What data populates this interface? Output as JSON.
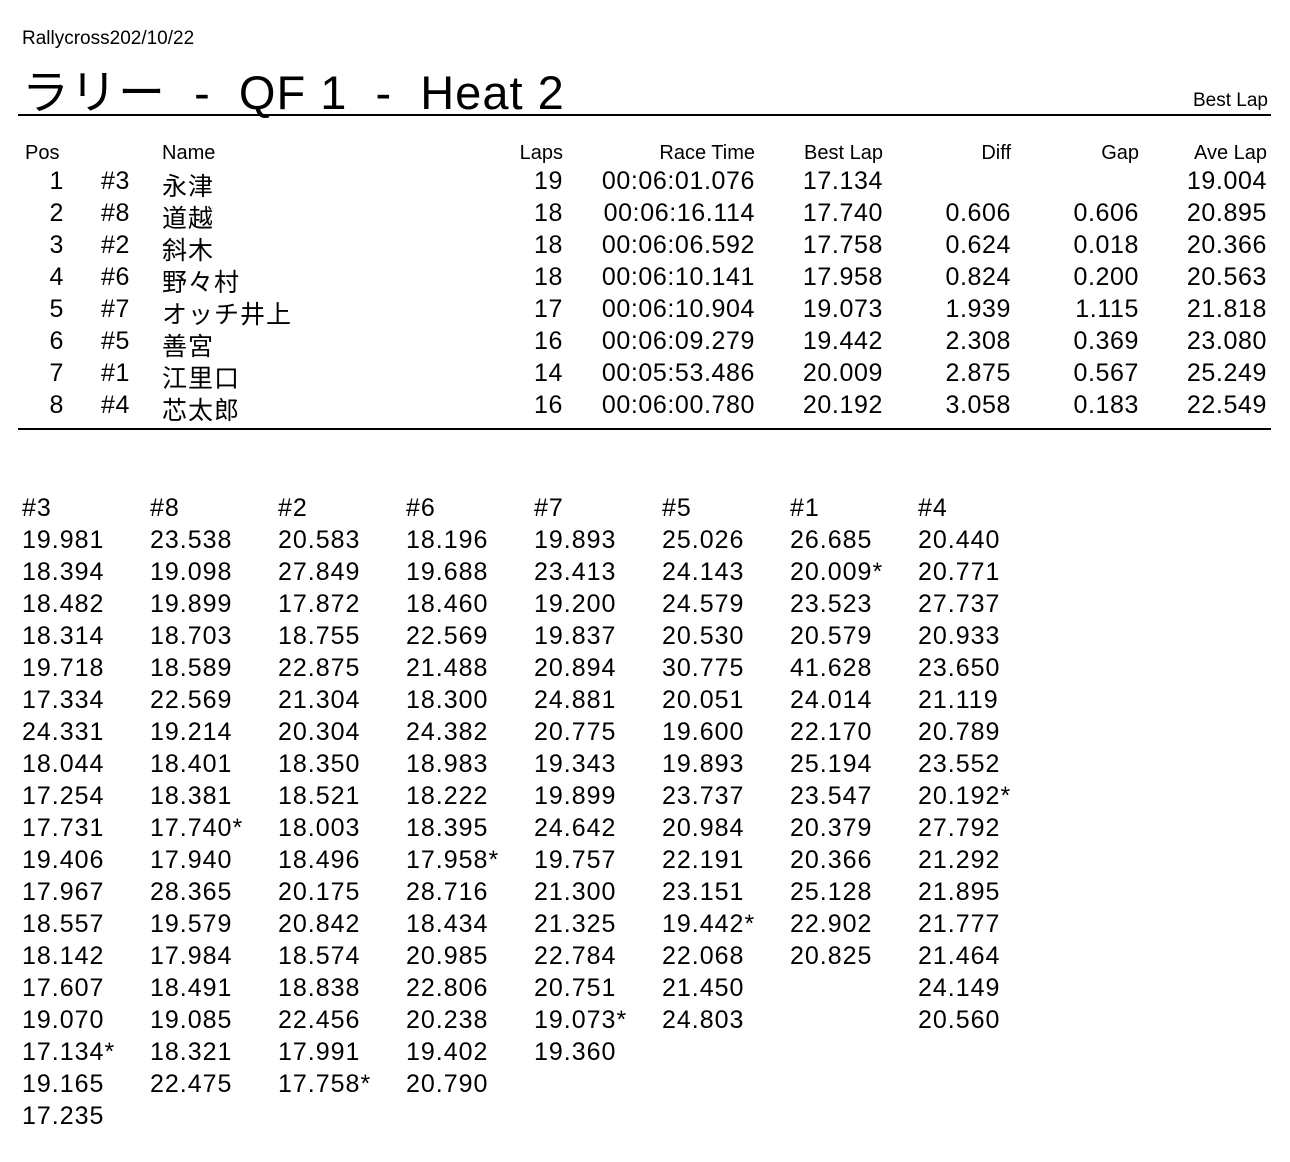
{
  "header": {
    "subtitle": "Rallycross202/10/22",
    "title": "ラリー  -  QF 1  -  Heat 2",
    "report_type": "Best Lap"
  },
  "results": {
    "columns": [
      "Pos",
      "Name",
      "Laps",
      "Race Time",
      "Best Lap",
      "Diff",
      "Gap",
      "Ave Lap"
    ],
    "rows": [
      {
        "pos": "1",
        "no": "#3",
        "name": "永津",
        "laps": "19",
        "race_time": "00:06:01.076",
        "best_lap": "17.134",
        "diff": "",
        "gap": "",
        "ave_lap": "19.004"
      },
      {
        "pos": "2",
        "no": "#8",
        "name": "道越",
        "laps": "18",
        "race_time": "00:06:16.114",
        "best_lap": "17.740",
        "diff": "0.606",
        "gap": "0.606",
        "ave_lap": "20.895"
      },
      {
        "pos": "3",
        "no": "#2",
        "name": "斜木",
        "laps": "18",
        "race_time": "00:06:06.592",
        "best_lap": "17.758",
        "diff": "0.624",
        "gap": "0.018",
        "ave_lap": "20.366"
      },
      {
        "pos": "4",
        "no": "#6",
        "name": "野々村",
        "laps": "18",
        "race_time": "00:06:10.141",
        "best_lap": "17.958",
        "diff": "0.824",
        "gap": "0.200",
        "ave_lap": "20.563"
      },
      {
        "pos": "5",
        "no": "#7",
        "name": "オッチ井上",
        "laps": "17",
        "race_time": "00:06:10.904",
        "best_lap": "19.073",
        "diff": "1.939",
        "gap": "1.115",
        "ave_lap": "21.818"
      },
      {
        "pos": "6",
        "no": "#5",
        "name": "善宮",
        "laps": "16",
        "race_time": "00:06:09.279",
        "best_lap": "19.442",
        "diff": "2.308",
        "gap": "0.369",
        "ave_lap": "23.080"
      },
      {
        "pos": "7",
        "no": "#1",
        "name": "江里口",
        "laps": "14",
        "race_time": "00:05:53.486",
        "best_lap": "20.009",
        "diff": "2.875",
        "gap": "0.567",
        "ave_lap": "25.249"
      },
      {
        "pos": "8",
        "no": "#4",
        "name": "芯太郎",
        "laps": "16",
        "race_time": "00:06:00.780",
        "best_lap": "20.192",
        "diff": "3.058",
        "gap": "0.183",
        "ave_lap": "22.549"
      }
    ]
  },
  "laps": [
    {
      "car": "#3",
      "times": [
        "19.981",
        "18.394",
        "18.482",
        "18.314",
        "19.718",
        "17.334",
        "24.331",
        "18.044",
        "17.254",
        "17.731",
        "19.406",
        "17.967",
        "18.557",
        "18.142",
        "17.607",
        "19.070",
        "17.134*",
        "19.165",
        "17.235"
      ]
    },
    {
      "car": "#8",
      "times": [
        "23.538",
        "19.098",
        "19.899",
        "18.703",
        "18.589",
        "22.569",
        "19.214",
        "18.401",
        "18.381",
        "17.740*",
        "17.940",
        "28.365",
        "19.579",
        "17.984",
        "18.491",
        "19.085",
        "18.321",
        "22.475"
      ]
    },
    {
      "car": "#2",
      "times": [
        "20.583",
        "27.849",
        "17.872",
        "18.755",
        "22.875",
        "21.304",
        "20.304",
        "18.350",
        "18.521",
        "18.003",
        "18.496",
        "20.175",
        "20.842",
        "18.574",
        "18.838",
        "22.456",
        "17.991",
        "17.758*"
      ]
    },
    {
      "car": "#6",
      "times": [
        "18.196",
        "19.688",
        "18.460",
        "22.569",
        "21.488",
        "18.300",
        "24.382",
        "18.983",
        "18.222",
        "18.395",
        "17.958*",
        "28.716",
        "18.434",
        "20.985",
        "22.806",
        "20.238",
        "19.402",
        "20.790"
      ]
    },
    {
      "car": "#7",
      "times": [
        "19.893",
        "23.413",
        "19.200",
        "19.837",
        "20.894",
        "24.881",
        "20.775",
        "19.343",
        "19.899",
        "24.642",
        "19.757",
        "21.300",
        "21.325",
        "22.784",
        "20.751",
        "19.073*",
        "19.360"
      ]
    },
    {
      "car": "#5",
      "times": [
        "25.026",
        "24.143",
        "24.579",
        "20.530",
        "30.775",
        "20.051",
        "19.600",
        "19.893",
        "23.737",
        "20.984",
        "22.191",
        "23.151",
        "19.442*",
        "22.068",
        "21.450",
        "24.803"
      ]
    },
    {
      "car": "#1",
      "times": [
        "26.685",
        "20.009*",
        "23.523",
        "20.579",
        "41.628",
        "24.014",
        "22.170",
        "25.194",
        "23.547",
        "20.379",
        "20.366",
        "25.128",
        "22.902",
        "20.825"
      ]
    },
    {
      "car": "#4",
      "times": [
        "20.440",
        "20.771",
        "27.737",
        "20.933",
        "23.650",
        "21.119",
        "20.789",
        "23.552",
        "20.192*",
        "27.792",
        "21.292",
        "21.895",
        "21.777",
        "21.464",
        "24.149",
        "20.560"
      ]
    }
  ]
}
